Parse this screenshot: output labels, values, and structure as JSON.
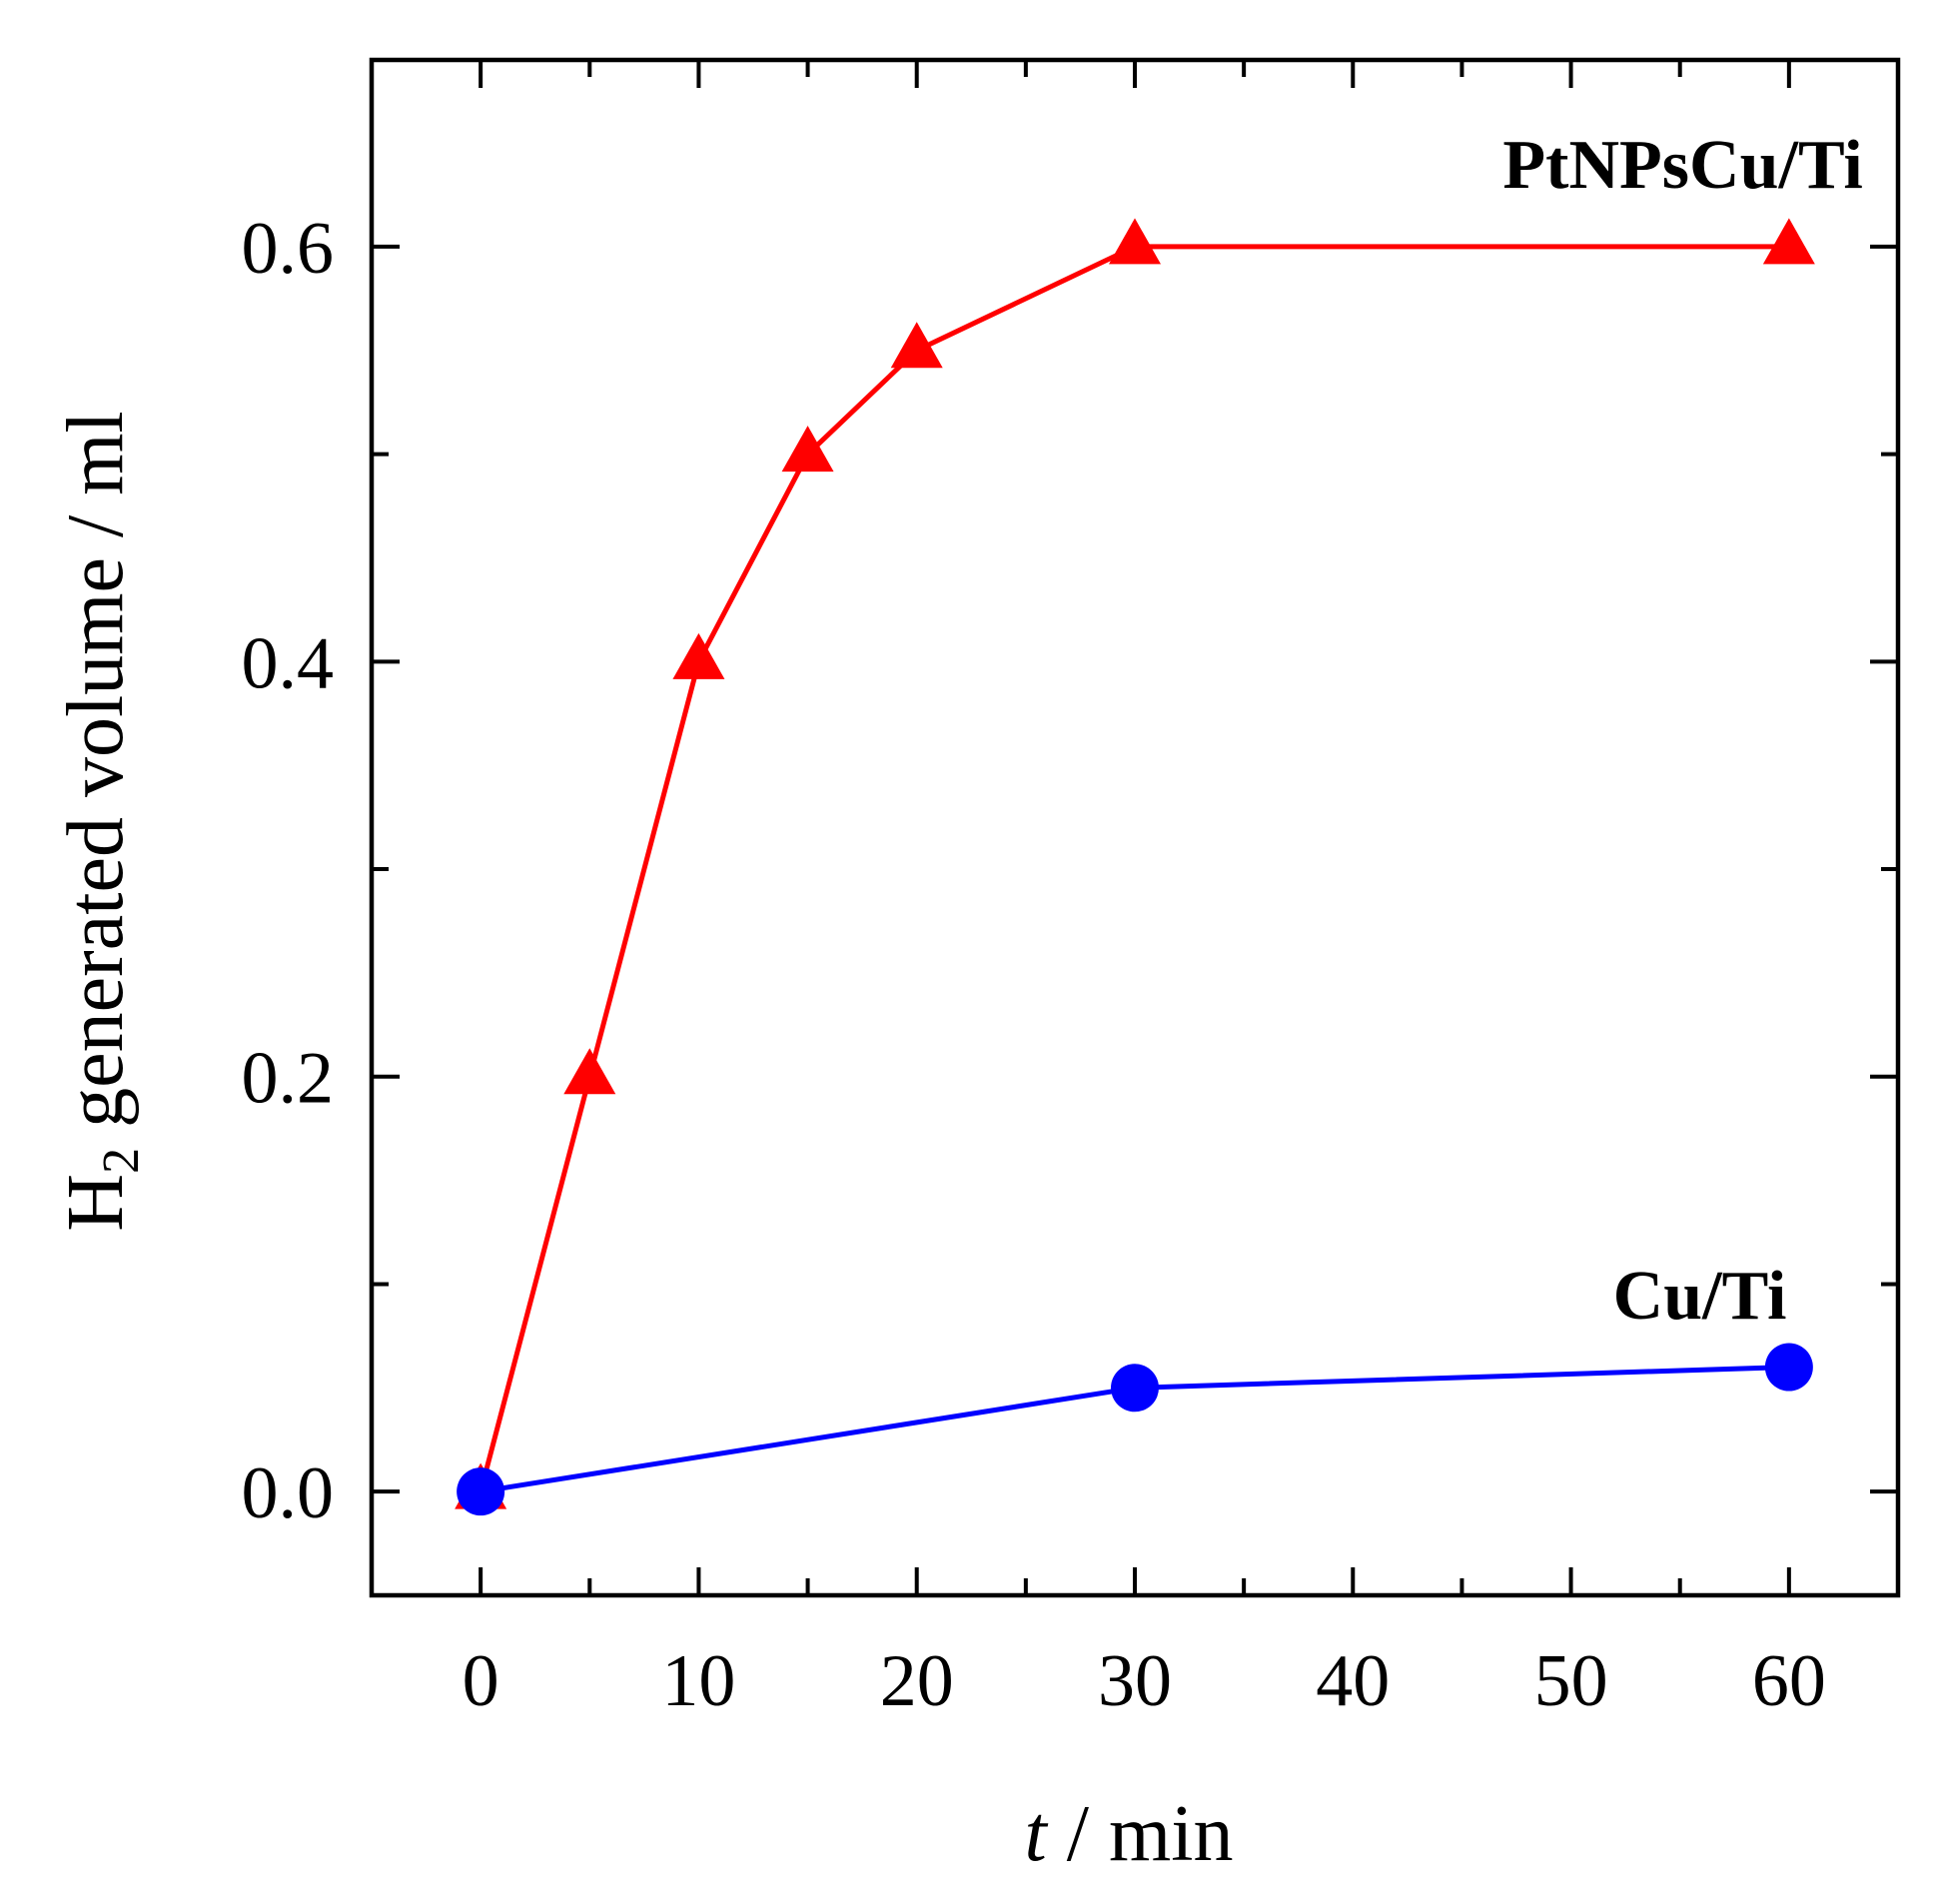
{
  "chart_data": {
    "type": "line",
    "title": "",
    "xlabel_italic": "t",
    "xlabel_rest": " / min",
    "ylabel_main": "H",
    "ylabel_sub": "2",
    "ylabel_rest": " generated volume / ml",
    "xlim": [
      -5,
      65
    ],
    "ylim": [
      -0.05,
      0.69
    ],
    "xticks": [
      0,
      10,
      20,
      30,
      40,
      50,
      60
    ],
    "xtick_labels": [
      "0",
      "10",
      "20",
      "30",
      "40",
      "50",
      "60"
    ],
    "xminor": [
      5,
      15,
      25,
      35,
      45,
      55
    ],
    "yticks": [
      0.0,
      0.2,
      0.4,
      0.6
    ],
    "ytick_labels": [
      "0.0",
      "0.2",
      "0.4",
      "0.6"
    ],
    "yminor": [
      0.1,
      0.3,
      0.5
    ],
    "grid": false,
    "series": [
      {
        "name": "PtNPsCu/Ti",
        "color": "#ff0000",
        "marker": "triangle",
        "x": [
          0,
          5,
          10,
          15,
          20,
          30,
          60
        ],
        "y": [
          0.0,
          0.2,
          0.4,
          0.5,
          0.55,
          0.6,
          0.6
        ],
        "label_anchor": [
          60,
          0.64
        ]
      },
      {
        "name": "Cu/Ti",
        "color": "#0000ff",
        "marker": "circle",
        "x": [
          0,
          30,
          60
        ],
        "y": [
          0.0,
          0.05,
          0.06
        ],
        "label_anchor": [
          56.5,
          0.095
        ]
      }
    ]
  }
}
